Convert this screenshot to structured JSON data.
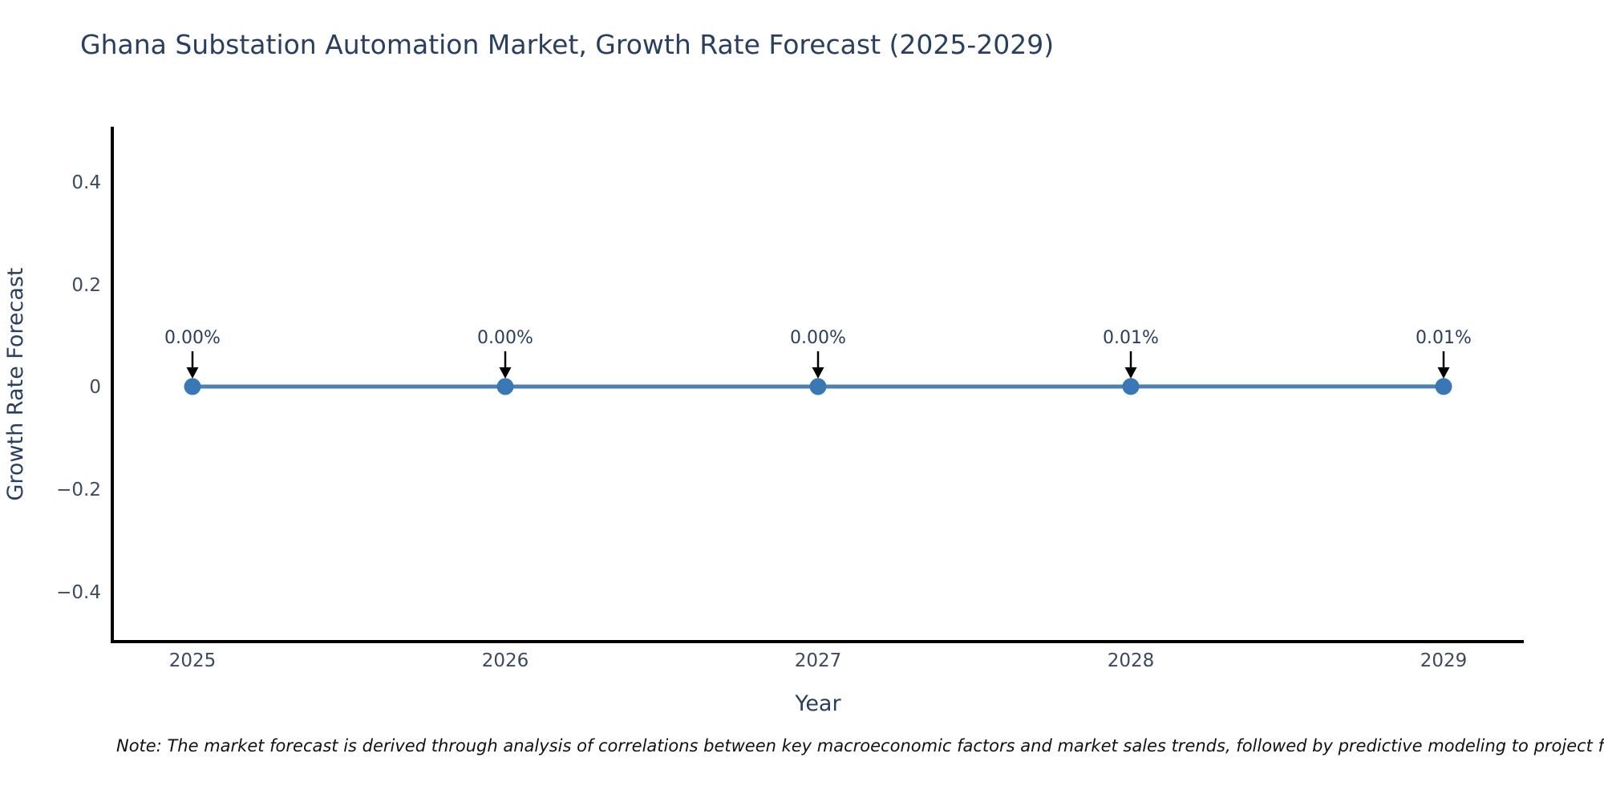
{
  "title": "Ghana Substation Automation Market, Growth Rate Forecast (2025-2029)",
  "y_axis": {
    "label": "Growth Rate Forecast",
    "ticks": [
      "0.4",
      "0.2",
      "0",
      "−0.2",
      "−0.4"
    ]
  },
  "x_axis": {
    "label": "Year",
    "ticks": [
      "2025",
      "2026",
      "2027",
      "2028",
      "2029"
    ]
  },
  "note": "Note: The market forecast is derived through analysis of correlations between key macroeconomic factors and market sales trends, followed by predictive modeling to project future sal",
  "colors": {
    "line": "#4a80b5",
    "marker": "#3a78b5",
    "axis": "#000000",
    "arrow": "#000000",
    "title_text": "#2a3f5f",
    "tick_text": "#3d4a5e",
    "annotation_text": "#2a3f5f",
    "background": "#ffffff"
  },
  "chart_data": {
    "type": "line",
    "title": "Ghana Substation Automation Market, Growth Rate Forecast (2025-2029)",
    "xlabel": "Year",
    "ylabel": "Growth Rate Forecast",
    "x": [
      2025,
      2026,
      2027,
      2028,
      2029
    ],
    "series": [
      {
        "name": "Growth Rate Forecast",
        "values_pct": [
          0.0,
          0.0,
          0.0,
          0.01,
          0.01
        ]
      }
    ],
    "point_labels": [
      "0.00%",
      "0.00%",
      "0.00%",
      "0.01%",
      "0.01%"
    ],
    "ylim": [
      -0.5,
      0.5
    ],
    "xlim": [
      2024.74,
      2029.26
    ],
    "grid": false,
    "legend": false,
    "annotation_arrows": "black arrows pointing down onto each data point"
  }
}
